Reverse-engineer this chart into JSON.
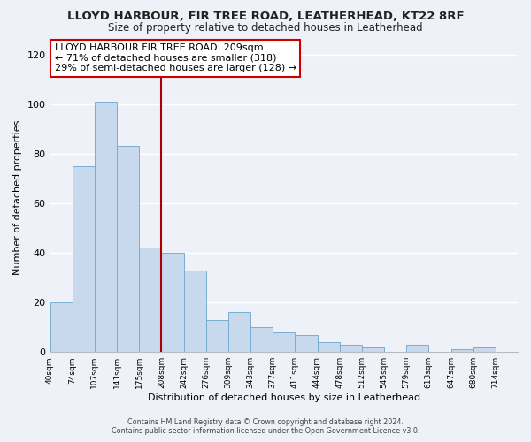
{
  "title": "LLOYD HARBOUR, FIR TREE ROAD, LEATHERHEAD, KT22 8RF",
  "subtitle": "Size of property relative to detached houses in Leatherhead",
  "xlabel": "Distribution of detached houses by size in Leatherhead",
  "ylabel": "Number of detached properties",
  "bar_color": "#c8d9ee",
  "bar_edge_color": "#7aadd4",
  "marker_line_color": "#aa0000",
  "categories": [
    "40sqm",
    "74sqm",
    "107sqm",
    "141sqm",
    "175sqm",
    "208sqm",
    "242sqm",
    "276sqm",
    "309sqm",
    "343sqm",
    "377sqm",
    "411sqm",
    "444sqm",
    "478sqm",
    "512sqm",
    "545sqm",
    "579sqm",
    "613sqm",
    "647sqm",
    "680sqm",
    "714sqm"
  ],
  "values": [
    20,
    75,
    101,
    83,
    42,
    40,
    33,
    13,
    16,
    10,
    8,
    7,
    4,
    3,
    2,
    0,
    3,
    0,
    1,
    2,
    0
  ],
  "ylim": [
    0,
    125
  ],
  "yticks": [
    0,
    20,
    40,
    60,
    80,
    100,
    120
  ],
  "marker_bar_index": 5,
  "annotation_lines": [
    "LLOYD HARBOUR FIR TREE ROAD: 209sqm",
    "← 71% of detached houses are smaller (318)",
    "29% of semi-detached houses are larger (128) →"
  ],
  "footer_line1": "Contains HM Land Registry data © Crown copyright and database right 2024.",
  "footer_line2": "Contains public sector information licensed under the Open Government Licence v3.0.",
  "background_color": "#eef2f8",
  "grid_color": "#ffffff",
  "title_fontsize": 9.5,
  "subtitle_fontsize": 8.5
}
